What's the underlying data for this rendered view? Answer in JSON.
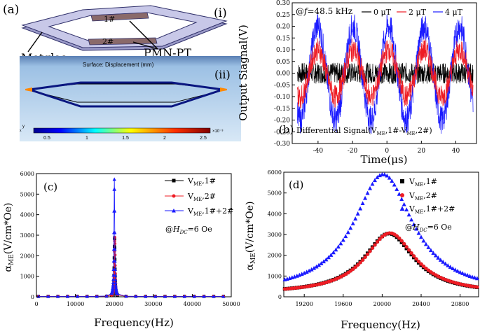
{
  "colors": {
    "black": "#000000",
    "red": "#ee1c24",
    "blue": "#1a1aff",
    "sim_bg": "#a8c8e6",
    "sim_bg_top": "#5a7fb4",
    "frame_fill": "#c8c8e8",
    "frame_edge": "#30306a",
    "pmn": "#8a6a6a"
  },
  "panel_a": {
    "label": "(a)",
    "sub_i": "(i)",
    "sub_ii": "(ii)",
    "label_1": "1#",
    "label_2": "2#",
    "metglas": "Metglas",
    "pmnpt": "PMN-PT",
    "sim_title": "Surface: Displacement (mm)",
    "colorbar_ticks": [
      "0.5",
      "1",
      "1.5",
      "2",
      "2.5"
    ],
    "colorbar_exp": "×10⁻³",
    "axis_mark": "y",
    "axis_mark_x": "x"
  },
  "chart_data": [
    {
      "id": "b",
      "type": "line",
      "panel_label": "(b)",
      "annotation": "Differential Signal(V",
      "annotation_sub": "ME",
      "annotation_mid": ",1#-V",
      "annotation_sub2": "ME",
      "annotation_end": ",2#)",
      "freq_prefix": "@",
      "freq_var": "f",
      "freq_value": "=48.5 kHz",
      "xlabel": "Time(μs)",
      "ylabel": "Output Siagnal(V)",
      "xlim": [
        -55,
        52
      ],
      "ylim": [
        -0.3,
        0.3
      ],
      "xticks": [
        "-40",
        "-20",
        "0",
        "20",
        "40"
      ],
      "xtick_values": [
        -40,
        -20,
        0,
        20,
        40
      ],
      "yticks": [
        "-0.30",
        "-0.25",
        "-0.20",
        "-0.15",
        "-0.10",
        "-0.05",
        "0.00",
        "0.05",
        "0.10",
        "0.15",
        "0.20",
        "0.25",
        "0.30"
      ],
      "ytick_values": [
        -0.3,
        -0.25,
        -0.2,
        -0.15,
        -0.1,
        -0.05,
        0,
        0.05,
        0.1,
        0.15,
        0.2,
        0.25,
        0.3
      ],
      "period_us": 20.6,
      "series": [
        {
          "name": "0 μT",
          "amplitude": 0.0,
          "noise": 0.045,
          "color": "#000000"
        },
        {
          "name": "2 μT",
          "amplitude": 0.1,
          "noise": 0.05,
          "color": "#ee1c24"
        },
        {
          "name": "4 μT",
          "amplitude": 0.2,
          "noise": 0.06,
          "color": "#1a1aff"
        }
      ]
    },
    {
      "id": "c",
      "type": "line",
      "panel_label": "(c)",
      "xlabel": "Frequency(Hz)",
      "ylabel_main": "α",
      "ylabel_sub": "ME",
      "ylabel_rest": "(V/cm*Oe)",
      "annotation_prefix": "@",
      "annotation_var": "H",
      "annotation_sub": "DC",
      "annotation_value": "=6 Oe",
      "xlim": [
        0,
        50000
      ],
      "ylim": [
        0,
        6000
      ],
      "xticks": [
        "0",
        "10000",
        "20000",
        "30000",
        "40000",
        "50000"
      ],
      "xtick_values": [
        0,
        10000,
        20000,
        30000,
        40000,
        50000
      ],
      "yticks": [
        "0",
        "1000",
        "2000",
        "3000",
        "4000",
        "5000",
        "6000"
      ],
      "ytick_values": [
        0,
        1000,
        2000,
        3000,
        4000,
        5000,
        6000
      ],
      "series": [
        {
          "name": "V",
          "name_sub": "ME",
          "name_rest": ",1#",
          "peak": 2900,
          "f0": 20050,
          "marker": "square",
          "color": "#000000"
        },
        {
          "name": "V",
          "name_sub": "ME",
          "name_rest": ",2#",
          "peak": 2880,
          "f0": 20100,
          "marker": "circle",
          "color": "#ee1c24"
        },
        {
          "name": "V",
          "name_sub": "ME",
          "name_rest": ",1#+2#",
          "peak": 5700,
          "f0": 20000,
          "marker": "triangle",
          "color": "#1a1aff"
        }
      ]
    },
    {
      "id": "d",
      "type": "scatter",
      "panel_label": "(d)",
      "xlabel": "Frequency(Hz)",
      "ylabel_main": "α",
      "ylabel_sub": "ME",
      "ylabel_rest": "(V/cm*Oe)",
      "annotation_prefix": "@",
      "annotation_var": "H",
      "annotation_sub": "DC",
      "annotation_value": "=6 Oe",
      "xlim": [
        18990,
        20990
      ],
      "ylim": [
        0,
        6000
      ],
      "xticks": [
        "19200",
        "19600",
        "20000",
        "20400",
        "20800"
      ],
      "xtick_values": [
        19200,
        19600,
        20000,
        20400,
        20800
      ],
      "yticks": [
        "0",
        "1000",
        "2000",
        "3000",
        "4000",
        "5000",
        "6000"
      ],
      "ytick_values": [
        0,
        1000,
        2000,
        3000,
        4000,
        5000,
        6000
      ],
      "series": [
        {
          "name": "V",
          "name_sub": "ME",
          "name_rest": ",1#",
          "peak": 2900,
          "f0": 20070,
          "width": 165,
          "marker": "square",
          "color": "#000000"
        },
        {
          "name": "V",
          "name_sub": "ME",
          "name_rest": ",2#",
          "peak": 2920,
          "f0": 20080,
          "width": 165,
          "marker": "circle",
          "color": "#ee1c24"
        },
        {
          "name": "V",
          "name_sub": "ME",
          "name_rest": ",1#+2#",
          "peak": 5750,
          "f0": 20010,
          "width": 195,
          "marker": "triangle",
          "color": "#1a1aff"
        }
      ]
    }
  ]
}
